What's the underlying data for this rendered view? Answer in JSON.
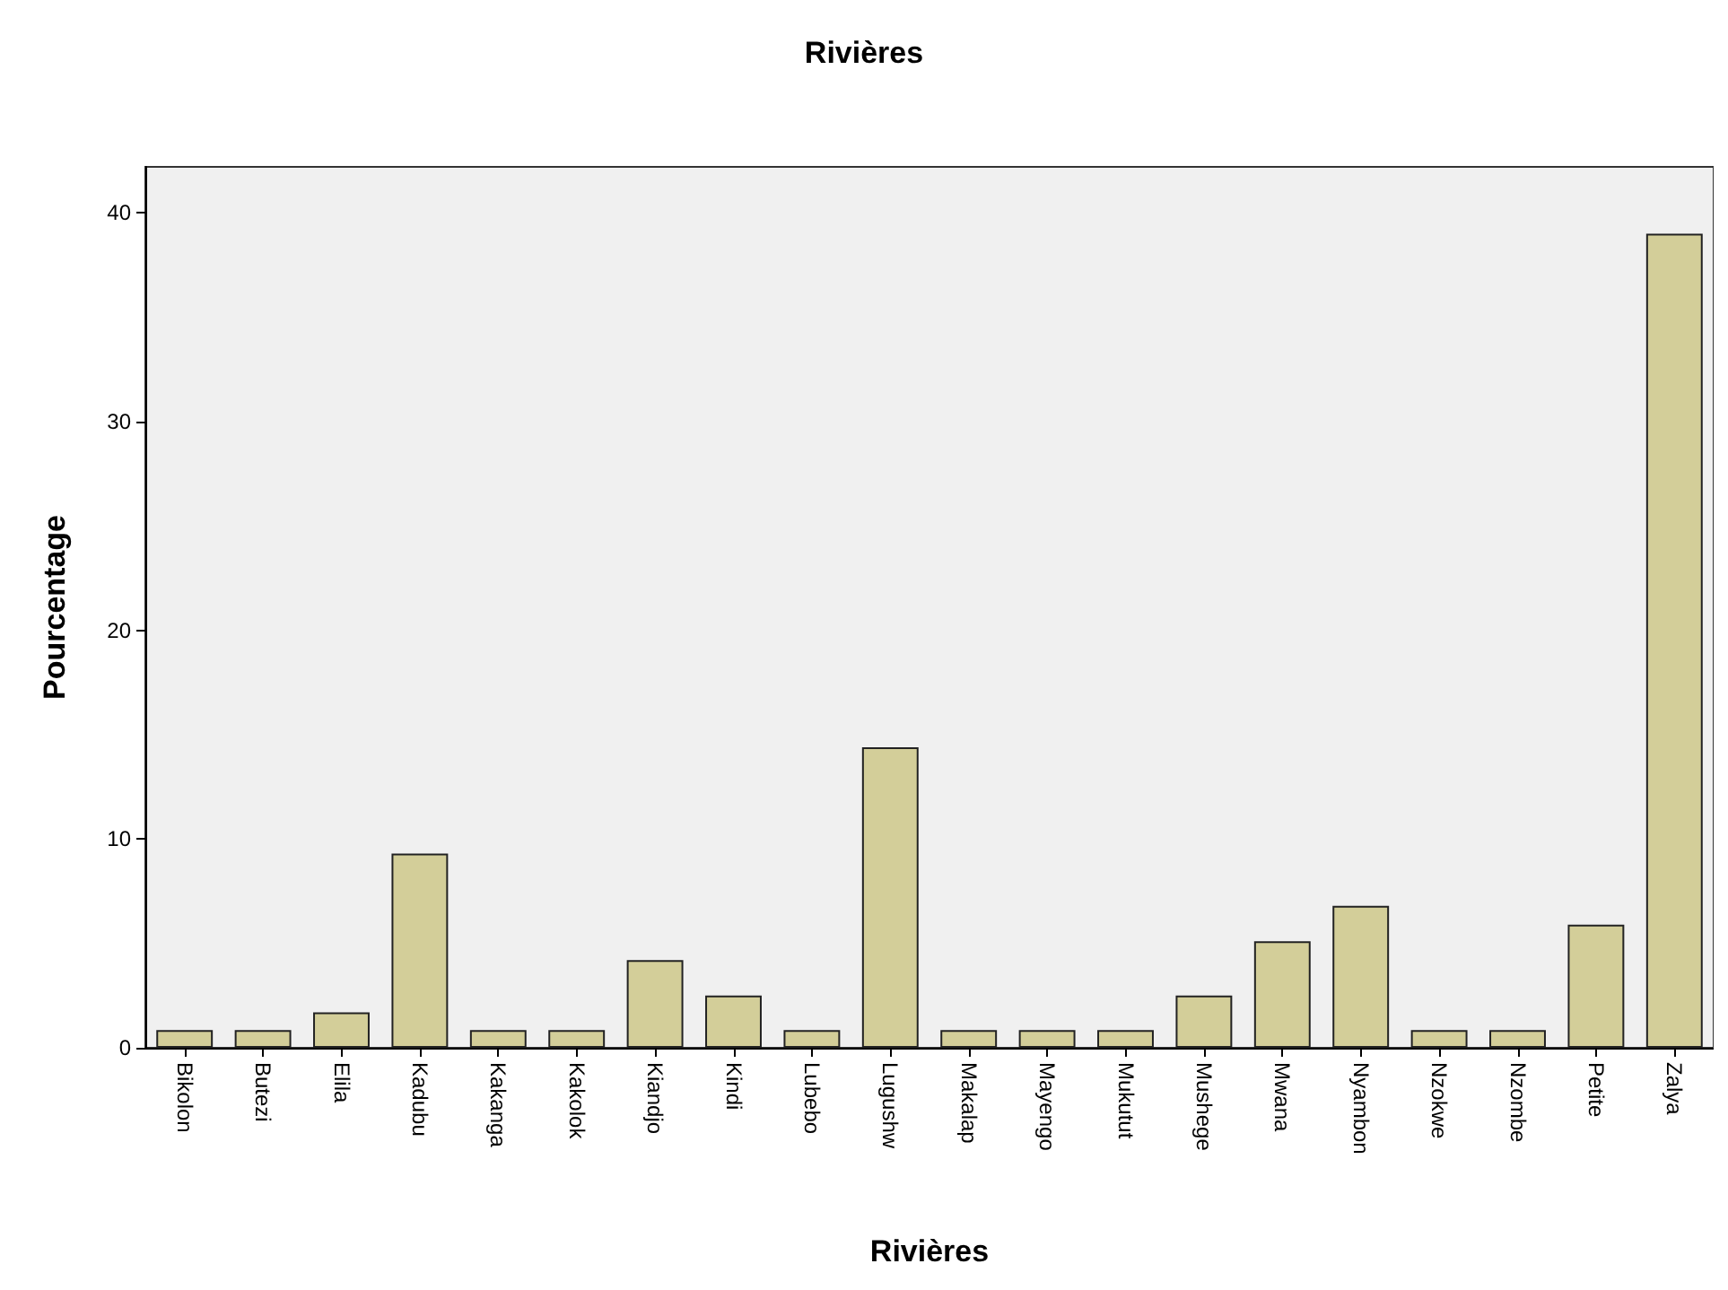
{
  "chart_data": {
    "type": "bar",
    "title": "Rivières",
    "xlabel": "Rivières",
    "ylabel": "Pourcentage",
    "categories": [
      "Bikolon",
      "Butezi",
      "Elila",
      "Kadubu",
      "Kakanga",
      "Kakolok",
      "Kiandjo",
      "Kindi",
      "Lubebo",
      "Lugushw",
      "Makalap",
      "Mayengo",
      "Mukutut",
      "Mushege",
      "Mwana",
      "Nyambon",
      "Nzokwe",
      "Nzombe",
      "Petite",
      "Zalya"
    ],
    "values": [
      0.85,
      0.85,
      1.7,
      9.3,
      0.85,
      0.85,
      4.2,
      2.5,
      0.85,
      14.4,
      0.85,
      0.85,
      0.85,
      2.5,
      5.1,
      6.8,
      0.85,
      0.85,
      5.9,
      39.0
    ],
    "color": "#d3ce99",
    "ylim": [
      0,
      42.2
    ],
    "yticks": [
      0,
      10,
      20,
      30,
      40
    ],
    "grid": false
  }
}
